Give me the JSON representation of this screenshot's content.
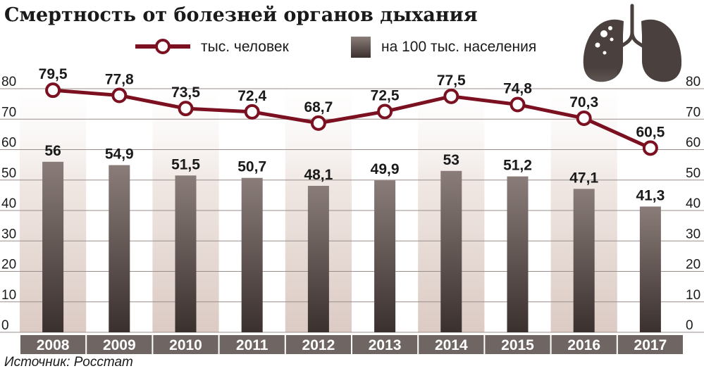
{
  "title": "Смертность от болезней органов дыхания",
  "source": "Источник: Росстат",
  "colors": {
    "line": "#7b1020",
    "bar_top": "#8a7d79",
    "bar_bottom": "#3a302e",
    "band": "#e6d9d4",
    "category_strip": "#6f6562",
    "icon": "#4a403d"
  },
  "icon": "lungs-icon",
  "chart_data": {
    "type": "bar+line",
    "categories": [
      "2008",
      "2009",
      "2010",
      "2011",
      "2012",
      "2013",
      "2014",
      "2015",
      "2016",
      "2017"
    ],
    "series": [
      {
        "name": "тыс. человек",
        "type": "line",
        "values": [
          79.5,
          77.8,
          73.5,
          72.4,
          68.7,
          72.5,
          77.5,
          74.8,
          70.3,
          60.5
        ],
        "labels": [
          "79,5",
          "77,8",
          "73,5",
          "72,4",
          "68,7",
          "72,5",
          "77,5",
          "74,8",
          "70,3",
          "60,5"
        ]
      },
      {
        "name": "на 100 тыс. населения",
        "type": "bar",
        "values": [
          56,
          54.9,
          51.5,
          50.7,
          48.1,
          49.9,
          53,
          51.2,
          47.1,
          41.3
        ],
        "labels": [
          "56",
          "54,9",
          "51,5",
          "50,7",
          "48,1",
          "49,9",
          "53",
          "51,2",
          "47,1",
          "41,3"
        ]
      }
    ],
    "ylim": [
      0,
      80
    ],
    "yticks": [
      0,
      10,
      20,
      30,
      40,
      50,
      60,
      70,
      80
    ],
    "legend": "top"
  }
}
